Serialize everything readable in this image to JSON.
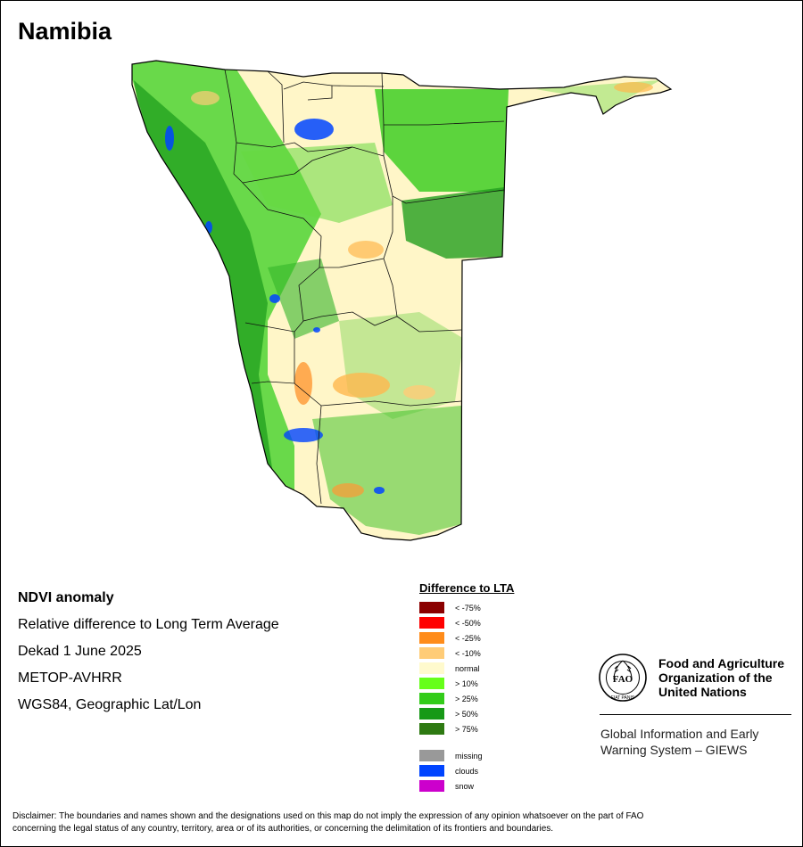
{
  "country": "Namibia",
  "info_lines": [
    "NDVI anomaly",
    "Relative difference to Long Term Average",
    "Dekad 1 June 2025",
    "METOP-AVHRR",
    "WGS84, Geographic Lat/Lon"
  ],
  "legend": {
    "title": "Difference to LTA",
    "classes": [
      {
        "label": "< -75%",
        "color": "#8b0000"
      },
      {
        "label": "< -50%",
        "color": "#ff0000"
      },
      {
        "label": "< -25%",
        "color": "#ff8c1a"
      },
      {
        "label": "< -10%",
        "color": "#ffcc77"
      },
      {
        "label": "normal",
        "color": "#fffacd"
      },
      {
        "label": "> 10%",
        "color": "#66ff1a"
      },
      {
        "label": "> 25%",
        "color": "#33cc1a"
      },
      {
        "label": "> 50%",
        "color": "#179917"
      },
      {
        "label": "> 75%",
        "color": "#2e7a12"
      }
    ],
    "other_classes": [
      {
        "label": "missing",
        "color": "#999999"
      },
      {
        "label": "clouds",
        "color": "#0044ff"
      },
      {
        "label": "snow",
        "color": "#cc00cc"
      }
    ]
  },
  "fao": {
    "name_lines": [
      "Food and Agriculture",
      "Organization of the",
      "United Nations"
    ],
    "logo_letters": "FAO",
    "logo_motto": "FIAT PANIS",
    "giews_lines": [
      "Global Information and Early",
      "Warning System – GIEWS"
    ]
  },
  "disclaimer_lines": [
    "Disclaimer: The boundaries and names shown and the designations used on this map do not imply the expression of any opinion whatsoever on the part of FAO",
    "concerning the legal status of any country, territory, area or of its authorities, or concerning the delimitation of its frontiers and boundaries."
  ]
}
